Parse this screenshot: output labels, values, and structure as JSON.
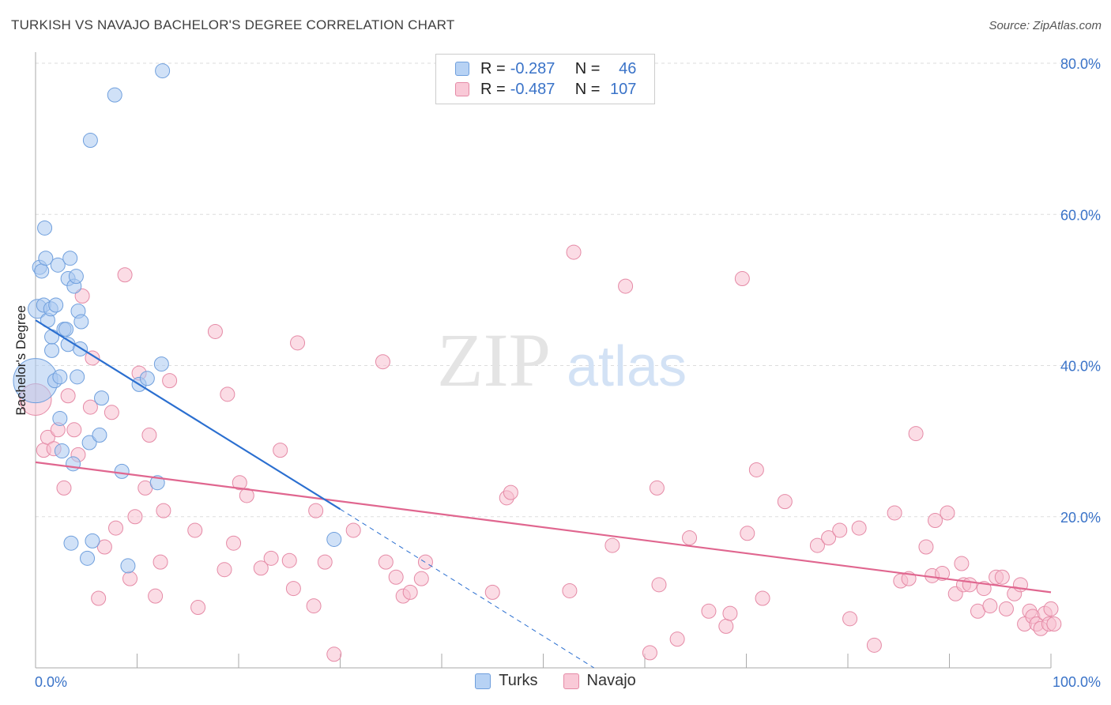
{
  "title": "TURKISH VS NAVAJO BACHELOR'S DEGREE CORRELATION CHART",
  "source": "Source: ZipAtlas.com",
  "watermark": {
    "zip": "ZIP",
    "atlas": "atlas"
  },
  "legend": {
    "turks": {
      "r_label": "R =",
      "r_value": "-0.287",
      "n_label": "N =",
      "n_value": "46"
    },
    "navajo": {
      "r_label": "R =",
      "r_value": "-0.487",
      "n_label": "N =",
      "n_value": "107"
    }
  },
  "bottom_legend": {
    "turks": "Turks",
    "navajo": "Navajo"
  },
  "colors": {
    "turks_fill": "#a9c8f0",
    "turks_stroke": "#6f9fdd",
    "turks_line": "#2b6fd0",
    "navajo_fill": "#f7bfd0",
    "navajo_stroke": "#e58aa6",
    "navajo_line": "#e0668f",
    "grid": "#dddddd",
    "axis_label": "#3a73c8"
  },
  "chart_data": {
    "type": "scatter",
    "title": "TURKISH VS NAVAJO BACHELOR'S DEGREE CORRELATION CHART",
    "xlabel": "",
    "ylabel": "Bachelor's Degree",
    "xlim": [
      0,
      100
    ],
    "ylim": [
      0,
      80
    ],
    "x_tick_labels": [
      "0.0%",
      "100.0%"
    ],
    "y_ticks": [
      20,
      40,
      60,
      80
    ],
    "y_tick_labels": [
      "20.0%",
      "40.0%",
      "60.0%",
      "80.0%"
    ],
    "series": [
      {
        "name": "Turks",
        "R": -0.287,
        "N": 46,
        "trend": {
          "x0": 0,
          "y0": 46,
          "x1": 30,
          "y1": 21,
          "dash_to_x": 55,
          "dash_to_y": 0
        },
        "points": [
          [
            0,
            38,
            28
          ],
          [
            0.2,
            47.5,
            12
          ],
          [
            0.4,
            53,
            9
          ],
          [
            0.6,
            52.5,
            9
          ],
          [
            0.8,
            48,
            9
          ],
          [
            0.9,
            58.2,
            9
          ],
          [
            1.0,
            54.2,
            9
          ],
          [
            1.2,
            46,
            9
          ],
          [
            1.5,
            47.5,
            9
          ],
          [
            1.6,
            42,
            9
          ],
          [
            1.6,
            43.8,
            9
          ],
          [
            1.9,
            38,
            9
          ],
          [
            2.0,
            48,
            9
          ],
          [
            2.2,
            53.3,
            9
          ],
          [
            2.4,
            38.5,
            9
          ],
          [
            2.4,
            33,
            9
          ],
          [
            2.6,
            28.7,
            9
          ],
          [
            2.8,
            44.8,
            9
          ],
          [
            3.0,
            44.8,
            9
          ],
          [
            3.2,
            42.8,
            9
          ],
          [
            3.2,
            51.5,
            9
          ],
          [
            3.4,
            54.2,
            9
          ],
          [
            3.5,
            16.5,
            9
          ],
          [
            3.7,
            27,
            9
          ],
          [
            3.8,
            50.5,
            9
          ],
          [
            4.0,
            51.8,
            9
          ],
          [
            4.1,
            38.5,
            9
          ],
          [
            4.2,
            47.2,
            9
          ],
          [
            4.4,
            42.2,
            9
          ],
          [
            4.5,
            45.8,
            9
          ],
          [
            5.1,
            14.5,
            9
          ],
          [
            5.3,
            29.8,
            9
          ],
          [
            5.4,
            69.8,
            9
          ],
          [
            5.6,
            16.8,
            9
          ],
          [
            6.3,
            30.8,
            9
          ],
          [
            6.5,
            35.7,
            9
          ],
          [
            7.8,
            75.8,
            9
          ],
          [
            8.5,
            26,
            9
          ],
          [
            9.1,
            13.5,
            9
          ],
          [
            10.2,
            37.5,
            9
          ],
          [
            11.0,
            38.3,
            9
          ],
          [
            12.0,
            24.5,
            9
          ],
          [
            12.4,
            40.2,
            9
          ],
          [
            12.5,
            79,
            9
          ],
          [
            29.4,
            17,
            9
          ]
        ]
      },
      {
        "name": "Navajo",
        "R": -0.487,
        "N": 107,
        "trend": {
          "x0": 0,
          "y0": 27.2,
          "x1": 100,
          "y1": 10
        },
        "points": [
          [
            0,
            35.5,
            20
          ],
          [
            0.8,
            28.8,
            9
          ],
          [
            1.2,
            30.5,
            9
          ],
          [
            1.8,
            29,
            9
          ],
          [
            2.2,
            31.5,
            9
          ],
          [
            2.8,
            23.8,
            9
          ],
          [
            3.2,
            36,
            9
          ],
          [
            3.8,
            31.5,
            9
          ],
          [
            4.2,
            28.2,
            9
          ],
          [
            4.6,
            49.2,
            9
          ],
          [
            5.4,
            34.5,
            9
          ],
          [
            5.6,
            41,
            9
          ],
          [
            6.2,
            9.2,
            9
          ],
          [
            6.8,
            16,
            9
          ],
          [
            7.5,
            33.8,
            9
          ],
          [
            7.9,
            18.5,
            9
          ],
          [
            8.8,
            52,
            9
          ],
          [
            9.3,
            11.8,
            9
          ],
          [
            9.8,
            20,
            9
          ],
          [
            10.2,
            39,
            9
          ],
          [
            10.8,
            23.8,
            9
          ],
          [
            11.2,
            30.8,
            9
          ],
          [
            11.8,
            9.5,
            9
          ],
          [
            12.3,
            14,
            9
          ],
          [
            12.6,
            20.8,
            9
          ],
          [
            13.2,
            38,
            9
          ],
          [
            15.7,
            18.2,
            9
          ],
          [
            16.0,
            8,
            9
          ],
          [
            17.7,
            44.5,
            9
          ],
          [
            18.6,
            13,
            9
          ],
          [
            18.9,
            36.2,
            9
          ],
          [
            19.5,
            16.5,
            9
          ],
          [
            20.1,
            24.5,
            9
          ],
          [
            20.8,
            22.8,
            9
          ],
          [
            22.2,
            13.2,
            9
          ],
          [
            23.2,
            14.5,
            9
          ],
          [
            24.1,
            28.8,
            9
          ],
          [
            25.0,
            14.2,
            9
          ],
          [
            25.4,
            10.5,
            9
          ],
          [
            25.8,
            43,
            9
          ],
          [
            27.4,
            8.2,
            9
          ],
          [
            27.6,
            20.8,
            9
          ],
          [
            28.5,
            14,
            9
          ],
          [
            29.4,
            1.8,
            9
          ],
          [
            31.3,
            18.2,
            9
          ],
          [
            34.2,
            40.5,
            9
          ],
          [
            34.5,
            14,
            9
          ],
          [
            35.5,
            12,
            9
          ],
          [
            36.2,
            9.5,
            9
          ],
          [
            36.9,
            10,
            9
          ],
          [
            38.0,
            11.8,
            9
          ],
          [
            38.4,
            14,
            9
          ],
          [
            45.0,
            10,
            9
          ],
          [
            46.4,
            22.5,
            9
          ],
          [
            46.8,
            23.2,
            9
          ],
          [
            52.6,
            10.2,
            9
          ],
          [
            53.0,
            55,
            9
          ],
          [
            56.8,
            16.2,
            9
          ],
          [
            58.1,
            50.5,
            9
          ],
          [
            60.5,
            2,
            9
          ],
          [
            61.2,
            23.8,
            9
          ],
          [
            61.4,
            11,
            9
          ],
          [
            63.2,
            3.8,
            9
          ],
          [
            64.4,
            17.2,
            9
          ],
          [
            66.3,
            7.5,
            9
          ],
          [
            68.0,
            5.5,
            9
          ],
          [
            68.4,
            7.2,
            9
          ],
          [
            69.6,
            51.5,
            9
          ],
          [
            70.1,
            17.8,
            9
          ],
          [
            71.0,
            26.2,
            9
          ],
          [
            71.6,
            9.2,
            9
          ],
          [
            73.8,
            22,
            9
          ],
          [
            77.0,
            16.2,
            9
          ],
          [
            78.1,
            17.2,
            9
          ],
          [
            79.2,
            18.2,
            9
          ],
          [
            80.2,
            6.5,
            9
          ],
          [
            81.1,
            18.5,
            9
          ],
          [
            82.6,
            3,
            9
          ],
          [
            84.6,
            20.5,
            9
          ],
          [
            85.2,
            11.5,
            9
          ],
          [
            86.0,
            11.8,
            9
          ],
          [
            86.7,
            31,
            9
          ],
          [
            87.7,
            16,
            9
          ],
          [
            88.3,
            12.2,
            9
          ],
          [
            88.6,
            19.5,
            9
          ],
          [
            89.3,
            12.5,
            9
          ],
          [
            89.8,
            20.5,
            9
          ],
          [
            90.6,
            9.8,
            9
          ],
          [
            91.2,
            13.8,
            9
          ],
          [
            91.4,
            11,
            9
          ],
          [
            92.0,
            11,
            9
          ],
          [
            92.8,
            7.5,
            9
          ],
          [
            93.4,
            10.5,
            9
          ],
          [
            94.0,
            8.2,
            9
          ],
          [
            94.6,
            12,
            9
          ],
          [
            95.2,
            12,
            9
          ],
          [
            95.6,
            7.8,
            9
          ],
          [
            96.4,
            9.8,
            9
          ],
          [
            97.0,
            11,
            9
          ],
          [
            97.4,
            5.8,
            9
          ],
          [
            97.9,
            7.5,
            9
          ],
          [
            98.2,
            6.8,
            9
          ],
          [
            98.6,
            5.8,
            9
          ],
          [
            99.0,
            5.2,
            9
          ],
          [
            99.4,
            7.2,
            9
          ],
          [
            99.8,
            5.8,
            9
          ],
          [
            100.0,
            7.8,
            9
          ],
          [
            100.3,
            5.8,
            9
          ]
        ]
      }
    ]
  }
}
